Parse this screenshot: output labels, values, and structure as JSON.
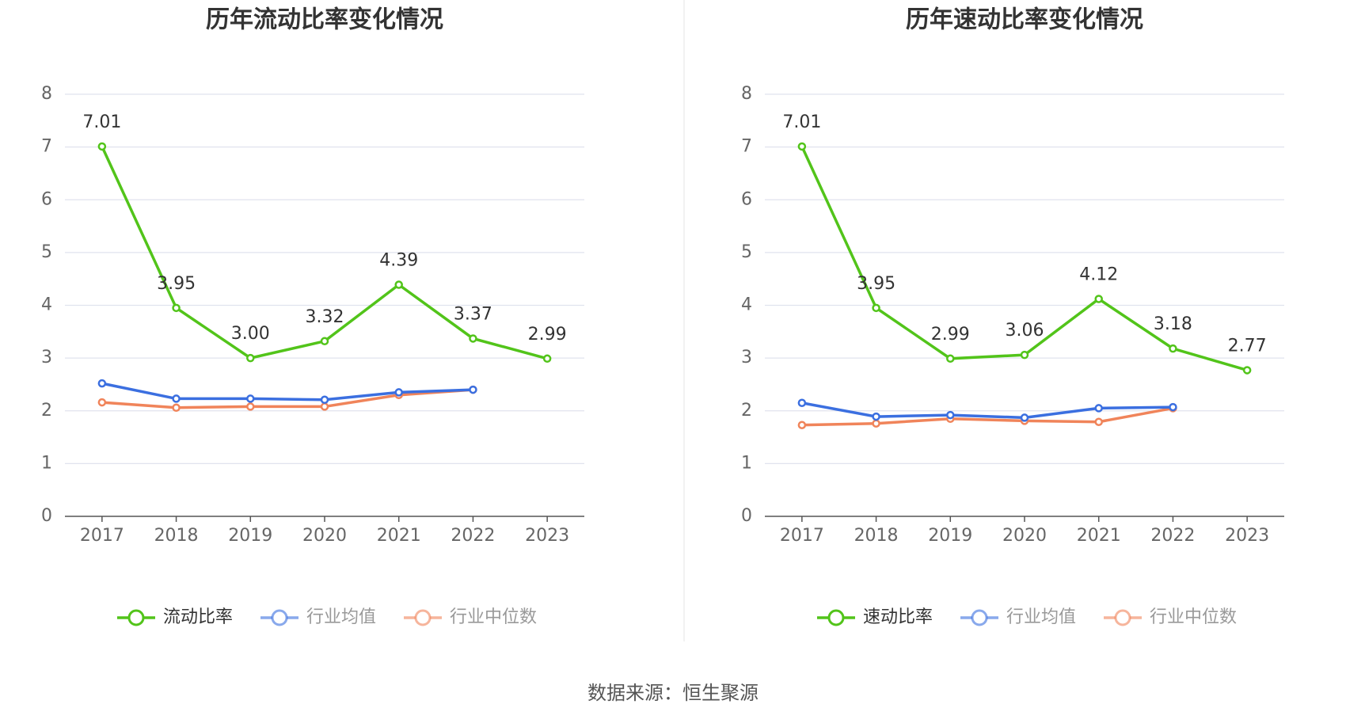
{
  "chart_data": [
    {
      "type": "line",
      "title": "历年流动比率变化情况",
      "categories": [
        "2017",
        "2018",
        "2019",
        "2020",
        "2021",
        "2022",
        "2023"
      ],
      "series": [
        {
          "name": "流动比率",
          "color": "#52c41a",
          "values": [
            7.01,
            3.95,
            3.0,
            3.32,
            4.39,
            3.37,
            2.99
          ],
          "value_labels": [
            "7.01",
            "3.95",
            "3.00",
            "3.32",
            "4.39",
            "3.37",
            "2.99"
          ]
        },
        {
          "name": "行业均值",
          "color": "#3b6fe0",
          "values": [
            2.52,
            2.23,
            2.23,
            2.21,
            2.35,
            2.4,
            null
          ]
        },
        {
          "name": "行业中位数",
          "color": "#f0845a",
          "values": [
            2.16,
            2.06,
            2.08,
            2.08,
            2.3,
            2.4,
            null
          ]
        }
      ],
      "ylim": [
        0,
        8
      ],
      "yticks": [
        0,
        1,
        2,
        3,
        4,
        5,
        6,
        7,
        8
      ],
      "grid": true,
      "legend": "bottom"
    },
    {
      "type": "line",
      "title": "历年速动比率变化情况",
      "categories": [
        "2017",
        "2018",
        "2019",
        "2020",
        "2021",
        "2022",
        "2023"
      ],
      "series": [
        {
          "name": "速动比率",
          "color": "#52c41a",
          "values": [
            7.01,
            3.95,
            2.99,
            3.06,
            4.12,
            3.18,
            2.77
          ],
          "value_labels": [
            "7.01",
            "3.95",
            "2.99",
            "3.06",
            "4.12",
            "3.18",
            "2.77"
          ]
        },
        {
          "name": "行业均值",
          "color": "#3b6fe0",
          "values": [
            2.15,
            1.89,
            1.92,
            1.87,
            2.05,
            2.07,
            null
          ]
        },
        {
          "name": "行业中位数",
          "color": "#f0845a",
          "values": [
            1.73,
            1.76,
            1.85,
            1.81,
            1.79,
            2.05,
            null
          ]
        }
      ],
      "ylim": [
        0,
        8
      ],
      "yticks": [
        0,
        1,
        2,
        3,
        4,
        5,
        6,
        7,
        8
      ],
      "grid": true,
      "legend": "bottom"
    }
  ],
  "source": "数据来源：恒生聚源"
}
